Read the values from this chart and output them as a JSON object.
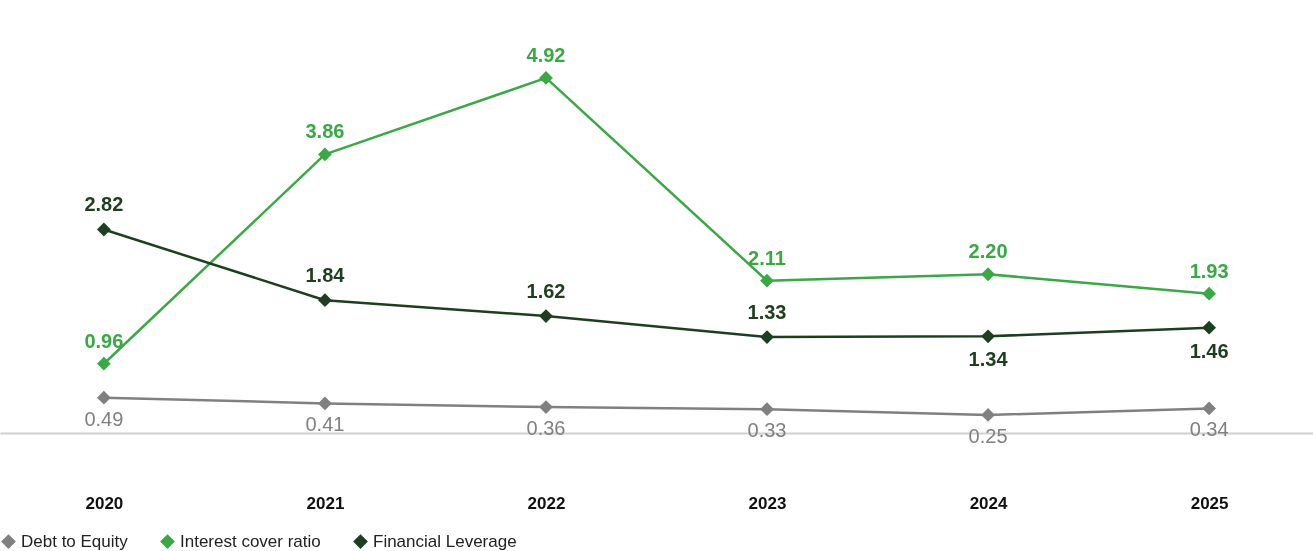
{
  "chart_data": {
    "type": "line",
    "categories": [
      "2020",
      "2021",
      "2022",
      "2023",
      "2024",
      "2025"
    ],
    "series": [
      {
        "name": "Debt to Equity",
        "color": "#808080",
        "values": [
          0.49,
          0.41,
          0.36,
          0.33,
          0.25,
          0.34
        ]
      },
      {
        "name": "Interest cover ratio",
        "color": "#3aa845",
        "values": [
          0.96,
          3.86,
          4.92,
          2.11,
          2.2,
          1.93
        ],
        "value_labels": [
          "0.96",
          "3.86",
          "4.92",
          "2.11",
          "2.20",
          "1.93"
        ]
      },
      {
        "name": "Financial Leverage",
        "color": "#1d3f1f",
        "values": [
          2.82,
          1.84,
          1.62,
          1.33,
          1.34,
          1.46
        ]
      }
    ],
    "ylim": [
      0,
      6
    ],
    "data_labels": true,
    "marker": "diamond",
    "line_style": "solid",
    "grid": false,
    "legend": "bottom"
  }
}
